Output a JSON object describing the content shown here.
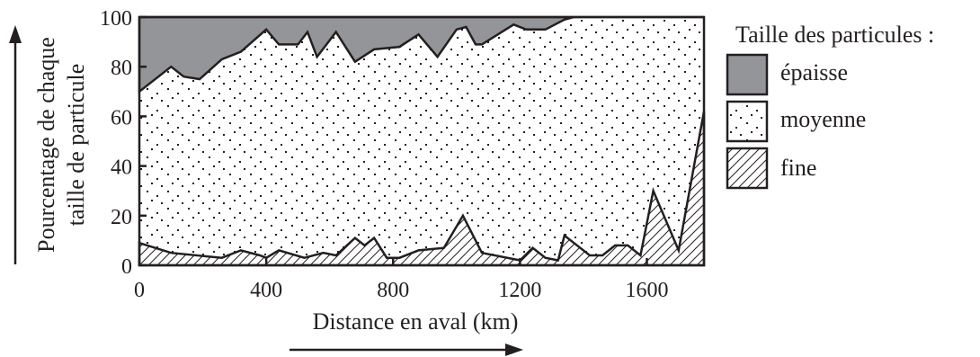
{
  "chart_data": {
    "type": "area",
    "stacked": true,
    "xlabel": "Distance en aval (km)",
    "ylabel_lines": [
      "Pourcentage de chaque",
      "taille de particule"
    ],
    "xlim": [
      0,
      1780
    ],
    "ylim": [
      0,
      100
    ],
    "x_ticks": [
      0,
      400,
      800,
      1200,
      1600
    ],
    "y_ticks": [
      0,
      20,
      40,
      60,
      80,
      100
    ],
    "legend": {
      "title": "Taille des particules :",
      "position": "right",
      "items": [
        {
          "key": "coarse",
          "label": "épaisse",
          "pattern": "solid-gray"
        },
        {
          "key": "medium",
          "label": "moyenne",
          "pattern": "dots"
        },
        {
          "key": "fine",
          "label": "fine",
          "pattern": "diagonal-hatch"
        }
      ]
    },
    "fine_boundary": {
      "x": [
        0,
        100,
        260,
        320,
        380,
        400,
        440,
        520,
        580,
        620,
        680,
        710,
        740,
        780,
        820,
        880,
        960,
        1020,
        1080,
        1200,
        1240,
        1280,
        1320,
        1340,
        1420,
        1460,
        1500,
        1540,
        1580,
        1620,
        1700,
        1780
      ],
      "y": [
        9,
        5,
        3,
        6,
        4,
        3,
        6,
        3,
        5,
        4,
        11,
        8,
        11,
        3,
        3,
        6,
        7,
        20,
        5,
        2,
        7,
        3,
        2,
        12,
        4,
        4,
        8,
        8,
        4,
        30,
        6,
        62
      ]
    },
    "coarse_boundary": {
      "x": [
        0,
        100,
        140,
        190,
        260,
        320,
        400,
        440,
        500,
        530,
        560,
        620,
        680,
        740,
        820,
        880,
        940,
        1000,
        1030,
        1060,
        1080,
        1180,
        1220,
        1280,
        1340,
        1370,
        1780
      ],
      "y": [
        70,
        80,
        76,
        75,
        83,
        86,
        95,
        89,
        89,
        94,
        84,
        94,
        82,
        87,
        88,
        93,
        84,
        95,
        96,
        89,
        89,
        97,
        95,
        95,
        99,
        100,
        100
      ]
    },
    "colors": {
      "coarse": "#939598",
      "medium": "#ffffff",
      "fine": "#ffffff",
      "ink": "#231f20"
    }
  }
}
